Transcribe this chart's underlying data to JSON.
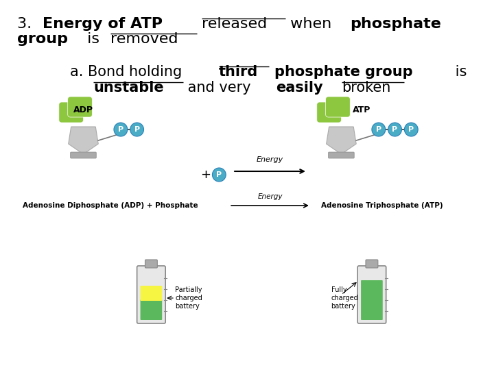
{
  "bg_color": "#ffffff",
  "title_line1_parts": [
    {
      "text": "3. ",
      "bold": false,
      "underline": false
    },
    {
      "text": "Energy of ATP",
      "bold": true,
      "underline": false
    },
    {
      "text": " ",
      "bold": false,
      "underline": false
    },
    {
      "text": "released",
      "bold": false,
      "underline": true
    },
    {
      "text": " when ",
      "bold": false,
      "underline": false
    },
    {
      "text": "phosphate",
      "bold": true,
      "underline": false
    }
  ],
  "title_line2_parts": [
    {
      "text": "group",
      "bold": true,
      "underline": false
    },
    {
      "text": " is ",
      "bold": false,
      "underline": false
    },
    {
      "text": "removed",
      "bold": false,
      "underline": true
    }
  ],
  "subtitle_line1_parts": [
    {
      "text": "a. Bond holding ",
      "bold": false,
      "underline": false
    },
    {
      "text": "third",
      "bold": true,
      "underline": true
    },
    {
      "text": " ",
      "bold": false,
      "underline": false
    },
    {
      "text": "phosphate group",
      "bold": true,
      "underline": false
    },
    {
      "text": " is",
      "bold": false,
      "underline": false
    }
  ],
  "subtitle_line2_parts": [
    {
      "text": "unstable",
      "bold": true,
      "underline": true
    },
    {
      "text": " and very ",
      "bold": false,
      "underline": false
    },
    {
      "text": "easily",
      "bold": true,
      "underline": false
    },
    {
      "text": " ",
      "bold": false,
      "underline": false
    },
    {
      "text": "broken",
      "bold": false,
      "underline": true
    }
  ],
  "adp_label": "ADP",
  "atp_label": "ATP",
  "adp_full": "Adenosine Diphosphate (ADP) + Phosphate",
  "atp_full": "Adenosine Triphosphate (ATP)",
  "energy_label": "Energy",
  "partially_charged": "Partially\ncharged\nbattery",
  "fully_charged": "Fully\ncharged\nbattery",
  "green_color": "#8dc63f",
  "gray_color": "#c8c8c8",
  "blue_color": "#4bacc6",
  "arrow_color": "#000000",
  "p_text_color": "#ffffff"
}
